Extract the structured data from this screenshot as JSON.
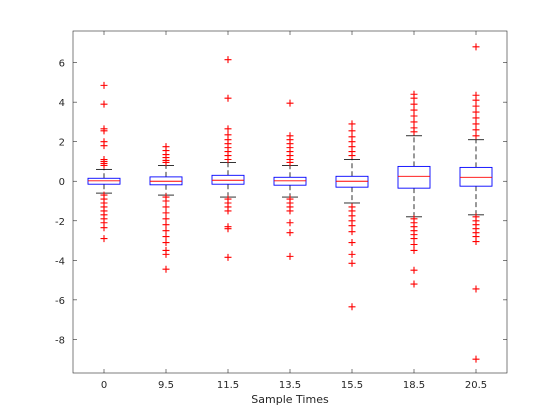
{
  "chart_data": {
    "type": "box",
    "xlabel": "Sample Times",
    "ylabel": "",
    "title": "",
    "categories": [
      "0",
      "9.5",
      "11.5",
      "13.5",
      "15.5",
      "18.5",
      "20.5"
    ],
    "ylim": [
      -9.7,
      7.6
    ],
    "yticks": [
      -8,
      -6,
      -4,
      -2,
      0,
      2,
      4,
      6
    ],
    "grid": false,
    "colors": {
      "box": "#0000ff",
      "median": "#ff0000",
      "whisker": "#000000",
      "outlier": "#ff0000"
    },
    "boxes": [
      {
        "category": "0",
        "q1": -0.15,
        "median": 0.02,
        "q3": 0.15,
        "whisker_low": -0.6,
        "whisker_high": 0.6,
        "outliers": [
          4.85,
          3.9,
          2.65,
          2.55,
          2.0,
          1.8,
          1.1,
          1.0,
          0.9,
          0.8,
          -0.7,
          -0.9,
          -1.1,
          -1.3,
          -1.5,
          -1.7,
          -1.9,
          -2.1,
          -2.35,
          -2.9
        ]
      },
      {
        "category": "9.5",
        "q1": -0.18,
        "median": 0.0,
        "q3": 0.22,
        "whisker_low": -0.7,
        "whisker_high": 0.8,
        "outliers": [
          1.75,
          1.55,
          1.35,
          1.2,
          1.05,
          0.95,
          -0.8,
          -1.0,
          -1.3,
          -1.6,
          -1.9,
          -2.2,
          -2.5,
          -2.8,
          -3.1,
          -3.5,
          -3.7,
          -4.45
        ]
      },
      {
        "category": "11.5",
        "q1": -0.15,
        "median": 0.05,
        "q3": 0.3,
        "whisker_low": -0.8,
        "whisker_high": 0.95,
        "outliers": [
          6.15,
          4.2,
          2.65,
          2.35,
          2.1,
          1.9,
          1.7,
          1.5,
          1.3,
          1.1,
          -0.9,
          -1.1,
          -1.3,
          -1.5,
          -2.3,
          -2.4,
          -3.85
        ]
      },
      {
        "category": "13.5",
        "q1": -0.2,
        "median": 0.02,
        "q3": 0.2,
        "whisker_low": -0.8,
        "whisker_high": 0.8,
        "outliers": [
          3.95,
          2.3,
          2.1,
          1.9,
          1.7,
          1.5,
          1.3,
          1.1,
          0.95,
          -0.9,
          -1.1,
          -1.3,
          -1.5,
          -2.1,
          -2.6,
          -3.8
        ]
      },
      {
        "category": "15.5",
        "q1": -0.3,
        "median": 0.0,
        "q3": 0.25,
        "whisker_low": -1.1,
        "whisker_high": 1.1,
        "outliers": [
          2.9,
          2.55,
          2.25,
          2.0,
          1.75,
          1.5,
          1.3,
          -1.3,
          -1.5,
          -1.75,
          -2.0,
          -2.25,
          -2.55,
          -3.1,
          -3.7,
          -4.15,
          -6.35
        ]
      },
      {
        "category": "18.5",
        "q1": -0.35,
        "median": 0.25,
        "q3": 0.75,
        "whisker_low": -1.8,
        "whisker_high": 2.3,
        "outliers": [
          4.4,
          4.2,
          3.9,
          3.6,
          3.3,
          3.0,
          2.7,
          2.5,
          -1.9,
          -2.1,
          -2.3,
          -2.5,
          -2.7,
          -2.9,
          -3.2,
          -3.5,
          -4.5,
          -5.2
        ]
      },
      {
        "category": "20.5",
        "q1": -0.25,
        "median": 0.2,
        "q3": 0.7,
        "whisker_low": -1.7,
        "whisker_high": 2.1,
        "outliers": [
          6.8,
          4.35,
          4.1,
          3.8,
          3.5,
          3.2,
          2.9,
          2.6,
          2.3,
          -1.8,
          -2.0,
          -2.2,
          -2.4,
          -2.6,
          -2.8,
          -3.05,
          -5.45,
          -9.0
        ]
      }
    ]
  }
}
